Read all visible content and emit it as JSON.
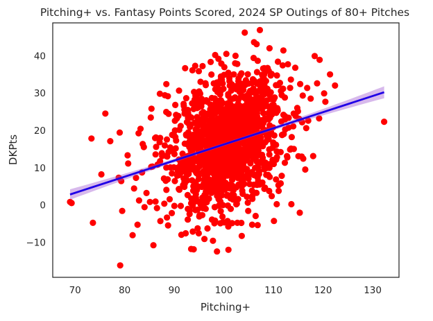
{
  "chart_data": {
    "type": "scatter",
    "title": "Pitching+ vs. Fantasy Points Scored, 2024 SP Outings of 80+ Pitches",
    "xlabel": "Pitching+",
    "ylabel": "DKPts",
    "xlim": [
      65.5,
      135.3
    ],
    "ylim": [
      -19.4,
      48.8
    ],
    "x_ticks": [
      70,
      80,
      90,
      100,
      110,
      120,
      130
    ],
    "y_ticks": [
      -10,
      0,
      10,
      20,
      30,
      40
    ],
    "x_tick_labels": [
      "70",
      "80",
      "90",
      "100",
      "110",
      "120",
      "130"
    ],
    "y_tick_labels": [
      "−10",
      "0",
      "10",
      "20",
      "30",
      "40"
    ],
    "grid": false,
    "legend": "none",
    "point_color": "#ff0000",
    "regression": {
      "color": "#1f00e6",
      "ci_color": "#9b4fd0",
      "start": [
        69.0,
        2.8
      ],
      "end": [
        132.3,
        30.2
      ],
      "ci_halfwidth_low": 1.4,
      "ci_halfwidth_center": 0.4,
      "ci_halfwidth_high": 1.6
    },
    "series": [
      {
        "points": [
          [
            69.0,
            0.8
          ],
          [
            69.3,
            0.5
          ],
          [
            73.3,
            17.8
          ],
          [
            73.6,
            -4.8
          ],
          [
            75.3,
            8.2
          ],
          [
            76.1,
            24.5
          ],
          [
            77.1,
            17.1
          ],
          [
            78.8,
            7.3
          ],
          [
            79.0,
            19.4
          ],
          [
            79.3,
            6.4
          ],
          [
            79.5,
            -1.6
          ],
          [
            79.1,
            -16.2
          ],
          [
            80.6,
            13.3
          ],
          [
            80.7,
            11.1
          ],
          [
            81.6,
            -8.1
          ],
          [
            81.9,
            4.4
          ],
          [
            82.6,
            -5.3
          ],
          [
            82.8,
            19.2
          ],
          [
            82.9,
            1.2
          ],
          [
            83.2,
            20.4
          ],
          [
            83.5,
            8.7
          ],
          [
            84.0,
            -0.6
          ],
          [
            84.4,
            3.2
          ],
          [
            85.1,
            0.8
          ],
          [
            85.4,
            25.8
          ],
          [
            85.6,
            10.3
          ],
          [
            85.8,
            -10.8
          ],
          [
            86.3,
            18.1
          ],
          [
            87.1,
            29.8
          ],
          [
            88.1,
            29.4
          ],
          [
            88.4,
            32.4
          ],
          [
            89.2,
            15.4
          ],
          [
            89.5,
            -2.2
          ],
          [
            90.2,
            26.8
          ],
          [
            92.3,
            -7.6
          ],
          [
            93.4,
            -11.8
          ],
          [
            94.0,
            30.3
          ],
          [
            95.7,
            37.2
          ],
          [
            96.7,
            -6.3
          ],
          [
            97.8,
            -9.6
          ],
          [
            99.3,
            -4.9
          ],
          [
            100.5,
            40.5
          ],
          [
            102.0,
            35.0
          ],
          [
            102.7,
            37.8
          ],
          [
            103.6,
            -8.3
          ],
          [
            104.2,
            46.2
          ],
          [
            105.7,
            -5.3
          ],
          [
            106.0,
            39.4
          ],
          [
            106.6,
            43.1
          ],
          [
            106.8,
            -5.4
          ],
          [
            107.7,
            34.9
          ],
          [
            108.5,
            33.2
          ],
          [
            108.8,
            36.7
          ],
          [
            109.2,
            42.0
          ],
          [
            110.1,
            -4.3
          ],
          [
            110.5,
            32.1
          ],
          [
            110.7,
            12.8
          ],
          [
            111.0,
            5.3
          ],
          [
            112.0,
            41.4
          ],
          [
            112.9,
            37.7
          ],
          [
            113.5,
            33.6
          ],
          [
            113.6,
            0.2
          ],
          [
            114.1,
            15.0
          ],
          [
            114.8,
            26.0
          ],
          [
            115.3,
            -2.1
          ],
          [
            115.9,
            29.3
          ],
          [
            116.0,
            12.4
          ],
          [
            116.4,
            9.5
          ],
          [
            116.6,
            20.6
          ],
          [
            117.0,
            22.6
          ],
          [
            117.5,
            28.5
          ],
          [
            118.0,
            13.1
          ],
          [
            118.3,
            39.9
          ],
          [
            118.8,
            32.6
          ],
          [
            119.2,
            23.2
          ],
          [
            119.3,
            38.9
          ],
          [
            120.2,
            29.9
          ],
          [
            121.4,
            35.0
          ],
          [
            122.4,
            32.0
          ],
          [
            132.3,
            22.3
          ]
        ]
      }
    ]
  }
}
